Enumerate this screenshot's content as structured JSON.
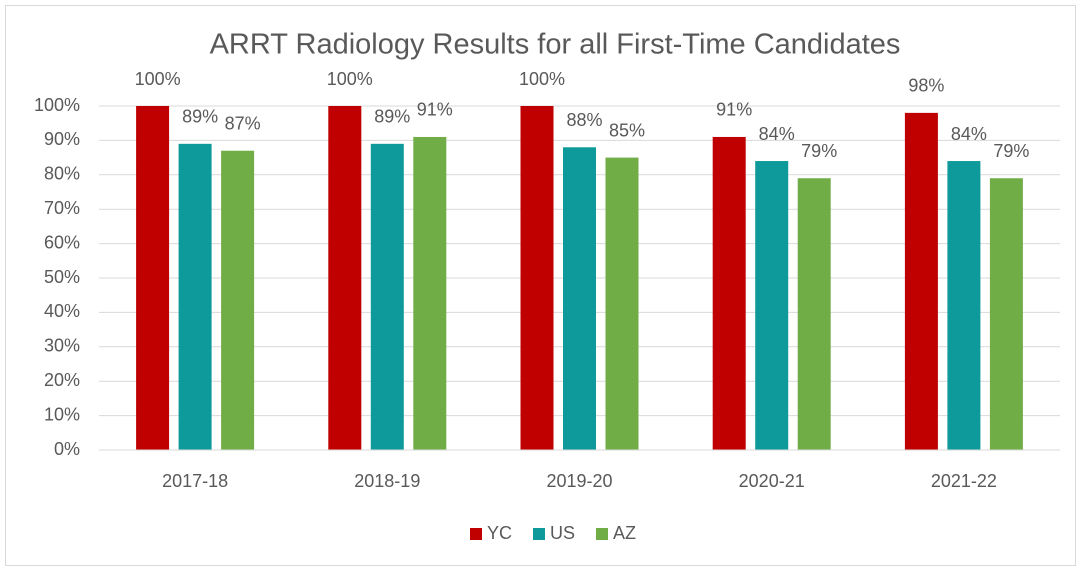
{
  "chart_data": {
    "type": "bar",
    "title": "ARRT Radiology Results for all First-Time Candidates",
    "categories": [
      "2017-18",
      "2018-19",
      "2019-20",
      "2020-21",
      "2021-22"
    ],
    "series": [
      {
        "name": "YC",
        "color": "#c00000",
        "values": [
          100,
          100,
          100,
          91,
          98
        ],
        "value_labels": [
          "100%",
          "100%",
          "100%",
          "91%",
          "98%"
        ]
      },
      {
        "name": "US",
        "color": "#0e9a9a",
        "values": [
          89,
          89,
          88,
          84,
          84
        ],
        "value_labels": [
          "89%",
          "89%",
          "88%",
          "84%",
          "84%"
        ]
      },
      {
        "name": "AZ",
        "color": "#70ad47",
        "values": [
          87,
          91,
          85,
          79,
          79
        ],
        "value_labels": [
          "87%",
          "91%",
          "85%",
          "79%",
          "79%"
        ]
      }
    ],
    "ylim": [
      0,
      100
    ],
    "yticks": [
      {
        "value": 0,
        "label": "0%"
      },
      {
        "value": 10,
        "label": "10%"
      },
      {
        "value": 20,
        "label": "20%"
      },
      {
        "value": 30,
        "label": "30%"
      },
      {
        "value": 40,
        "label": "40%"
      },
      {
        "value": 50,
        "label": "50%"
      },
      {
        "value": 60,
        "label": "60%"
      },
      {
        "value": 70,
        "label": "70%"
      },
      {
        "value": 80,
        "label": "80%"
      },
      {
        "value": 90,
        "label": "90%"
      },
      {
        "value": 100,
        "label": "100%"
      }
    ],
    "grid": true,
    "legend": "bottom"
  }
}
